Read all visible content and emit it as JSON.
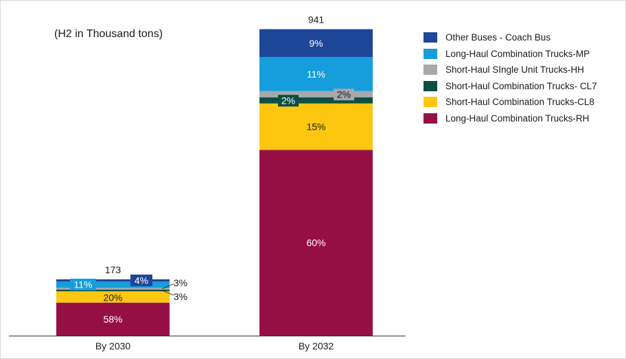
{
  "chart_data": {
    "type": "bar",
    "stacked": true,
    "unit_note": "(H2 in Thousand tons)",
    "categories": [
      "By 2030",
      "By 2032"
    ],
    "totals": [
      173,
      941
    ],
    "series": [
      {
        "name": "Long-Haul Combination Trucks-RH",
        "color": "#971045",
        "values": [
          100.3,
          564.6
        ],
        "labels": [
          "58%",
          "60%"
        ]
      },
      {
        "name": "Short-Haul Combination Trucks-CL8",
        "color": "#fdc70f",
        "values": [
          34.6,
          141.2
        ],
        "labels": [
          "20%",
          "15%"
        ]
      },
      {
        "name": "Short-Haul Combination Trucks- CL7",
        "color": "#0d4f45",
        "values": [
          5.2,
          18.8
        ],
        "labels": [
          "3%",
          "2%"
        ]
      },
      {
        "name": "Short-Haul SIngle Unit Trucks-HH",
        "color": "#a6a8ab",
        "values": [
          5.2,
          18.8
        ],
        "labels": [
          "3%",
          "2%"
        ]
      },
      {
        "name": "Long-Haul Combination Trucks-MP",
        "color": "#169ddb",
        "values": [
          19.0,
          103.5
        ],
        "labels": [
          "11%",
          "11%"
        ]
      },
      {
        "name": "Other Buses - Coach Bus",
        "color": "#1e4699",
        "values": [
          6.9,
          84.7
        ],
        "labels": [
          "4%",
          "9%"
        ]
      }
    ],
    "ylim": [
      0,
      941
    ],
    "grid": false,
    "legend_position": "right"
  }
}
